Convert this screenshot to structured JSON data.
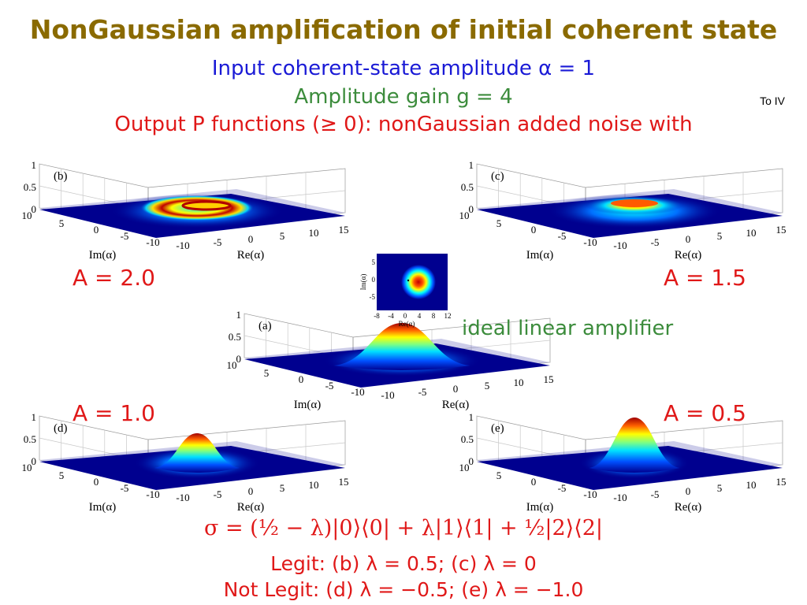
{
  "title": "NonGaussian amplification of initial coherent state",
  "subtitle_lines": {
    "line1": "Input coherent-state amplitude α = 1",
    "line2": "Amplitude gain g = 4",
    "line3": "Output P functions (≥ 0): nonGaussian added noise with"
  },
  "link_label": "To IV",
  "ideal_label": "ideal linear amplifier",
  "plots": [
    {
      "panel": "(b)",
      "A_label": "A = 2.0",
      "shape": "ring"
    },
    {
      "panel": "(c)",
      "A_label": "A = 1.5",
      "shape": "flat-ring"
    },
    {
      "panel": "(a)",
      "A_label": "",
      "shape": "gaussian"
    },
    {
      "panel": "(d)",
      "A_label": "A = 1.0",
      "shape": "peak"
    },
    {
      "panel": "(e)",
      "A_label": "A = 0.5",
      "shape": "sharp-peak"
    }
  ],
  "axes": {
    "z_ticks": [
      "1",
      "0.5",
      "0"
    ],
    "im_ticks": [
      "10",
      "5",
      "0",
      "-5",
      "-10"
    ],
    "re_ticks": [
      "-10",
      "-5",
      "0",
      "5",
      "10",
      "15"
    ],
    "im_label": "Im(α)",
    "re_label": "Re(α)"
  },
  "inset": {
    "x_ticks": [
      "-8",
      "-4",
      "0",
      "4",
      "8",
      "12"
    ],
    "y_ticks": [
      "5",
      "0",
      "-5"
    ],
    "xlabel": "Re(α)",
    "ylabel": "Im(α)"
  },
  "formula": "σ = (½ − λ)|0⟩⟨0| + λ|1⟩⟨1| + ½|2⟩⟨2|",
  "legit_line": "Legit: (b) λ = 0.5; (c) λ = 0",
  "not_legit_line": "Not Legit: (d) λ = −0.5; (e) λ = −1.0",
  "colors": {
    "title": "#8a6a00",
    "blue": "#1a1ad6",
    "green": "#3c8c3c",
    "red": "#e01818"
  }
}
